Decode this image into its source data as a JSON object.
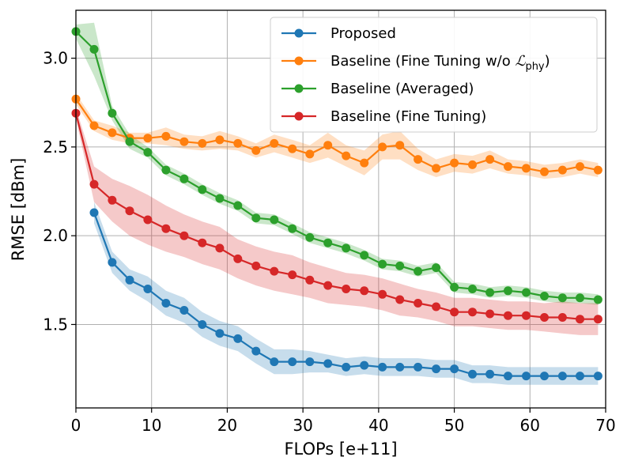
{
  "chart_data": {
    "type": "line",
    "title": "",
    "xlabel": "FLOPs [e+11]",
    "ylabel": "RMSE [dBm]",
    "xlim": [
      0,
      70
    ],
    "ylim": [
      1.03,
      3.27
    ],
    "xticks": [
      0,
      10,
      20,
      30,
      40,
      50,
      60,
      70
    ],
    "yticks": [
      1.5,
      2.0,
      2.5,
      3.0
    ],
    "xtick_labels": [
      "0",
      "10",
      "20",
      "30",
      "40",
      "50",
      "60",
      "70"
    ],
    "ytick_labels": [
      "1.5",
      "2.0",
      "2.5",
      "3.0"
    ],
    "grid": true,
    "legend_position": "top-right",
    "series": [
      {
        "name": "Proposed",
        "label_main": "Proposed",
        "label_sub": "",
        "label_suffix": "",
        "color": "#1f77b4",
        "x": [
          2.4,
          4.8,
          7.1,
          9.5,
          11.9,
          14.3,
          16.7,
          19.0,
          21.4,
          23.8,
          26.2,
          28.6,
          30.9,
          33.3,
          35.7,
          38.1,
          40.5,
          42.8,
          45.2,
          47.6,
          50.0,
          52.4,
          54.7,
          57.1,
          59.5,
          61.9,
          64.3,
          66.6,
          69.0
        ],
        "y": [
          2.13,
          1.85,
          1.75,
          1.7,
          1.62,
          1.58,
          1.5,
          1.45,
          1.42,
          1.35,
          1.29,
          1.29,
          1.29,
          1.28,
          1.26,
          1.27,
          1.26,
          1.26,
          1.26,
          1.25,
          1.25,
          1.22,
          1.22,
          1.21,
          1.21,
          1.21,
          1.21,
          1.21,
          1.21
        ],
        "band": [
          0.06,
          0.06,
          0.06,
          0.07,
          0.07,
          0.07,
          0.07,
          0.07,
          0.07,
          0.07,
          0.07,
          0.07,
          0.06,
          0.05,
          0.05,
          0.05,
          0.05,
          0.05,
          0.05,
          0.05,
          0.05,
          0.05,
          0.05,
          0.05,
          0.05,
          0.05,
          0.05,
          0.05,
          0.05
        ]
      },
      {
        "name": "Baseline (Fine Tuning w/o L_phy)",
        "label_main": "Baseline (Fine Tuning w/o ",
        "label_sub": "phy",
        "label_suffix": ")",
        "label_symbol": "ℒ",
        "color": "#ff7f0e",
        "x": [
          0,
          2.4,
          4.8,
          7.1,
          9.5,
          11.9,
          14.3,
          16.7,
          19.0,
          21.4,
          23.8,
          26.2,
          28.6,
          30.9,
          33.3,
          35.7,
          38.1,
          40.5,
          42.8,
          45.2,
          47.6,
          50.0,
          52.4,
          54.7,
          57.1,
          59.5,
          61.9,
          64.3,
          66.6,
          69.0
        ],
        "y": [
          2.77,
          2.62,
          2.58,
          2.55,
          2.55,
          2.56,
          2.53,
          2.52,
          2.54,
          2.52,
          2.48,
          2.52,
          2.49,
          2.46,
          2.51,
          2.45,
          2.41,
          2.5,
          2.51,
          2.43,
          2.38,
          2.41,
          2.4,
          2.43,
          2.39,
          2.38,
          2.36,
          2.37,
          2.39,
          2.37
        ],
        "band": [
          0.03,
          0.03,
          0.04,
          0.03,
          0.03,
          0.05,
          0.04,
          0.04,
          0.05,
          0.04,
          0.04,
          0.05,
          0.05,
          0.05,
          0.07,
          0.06,
          0.07,
          0.07,
          0.08,
          0.06,
          0.05,
          0.05,
          0.05,
          0.05,
          0.04,
          0.04,
          0.04,
          0.04,
          0.04,
          0.04
        ]
      },
      {
        "name": "Baseline (Averaged)",
        "label_main": "Baseline (Averaged)",
        "label_sub": "",
        "label_suffix": "",
        "color": "#2ca02c",
        "x": [
          0,
          2.4,
          4.8,
          7.1,
          9.5,
          11.9,
          14.3,
          16.7,
          19.0,
          21.4,
          23.8,
          26.2,
          28.6,
          30.9,
          33.3,
          35.7,
          38.1,
          40.5,
          42.8,
          45.2,
          47.6,
          50.0,
          52.4,
          54.7,
          57.1,
          59.5,
          61.9,
          64.3,
          66.6,
          69.0
        ],
        "y": [
          3.15,
          3.05,
          2.69,
          2.53,
          2.47,
          2.37,
          2.32,
          2.26,
          2.21,
          2.17,
          2.1,
          2.09,
          2.04,
          1.99,
          1.96,
          1.93,
          1.89,
          1.84,
          1.83,
          1.8,
          1.82,
          1.71,
          1.7,
          1.68,
          1.69,
          1.68,
          1.66,
          1.65,
          1.65,
          1.64
        ],
        "band": [
          0.04,
          0.15,
          0.04,
          0.04,
          0.03,
          0.03,
          0.03,
          0.03,
          0.03,
          0.03,
          0.03,
          0.03,
          0.03,
          0.03,
          0.03,
          0.03,
          0.03,
          0.03,
          0.03,
          0.03,
          0.03,
          0.03,
          0.03,
          0.03,
          0.03,
          0.03,
          0.03,
          0.03,
          0.03,
          0.03
        ]
      },
      {
        "name": "Baseline (Fine Tuning)",
        "label_main": "Baseline (Fine Tuning)",
        "label_sub": "",
        "label_suffix": "",
        "color": "#d62728",
        "x": [
          0,
          2.4,
          4.8,
          7.1,
          9.5,
          11.9,
          14.3,
          16.7,
          19.0,
          21.4,
          23.8,
          26.2,
          28.6,
          30.9,
          33.3,
          35.7,
          38.1,
          40.5,
          42.8,
          45.2,
          47.6,
          50.0,
          52.4,
          54.7,
          57.1,
          59.5,
          61.9,
          64.3,
          66.6,
          69.0
        ],
        "y": [
          2.69,
          2.29,
          2.2,
          2.14,
          2.09,
          2.04,
          2.0,
          1.96,
          1.93,
          1.87,
          1.83,
          1.8,
          1.78,
          1.75,
          1.72,
          1.7,
          1.69,
          1.67,
          1.64,
          1.62,
          1.6,
          1.57,
          1.57,
          1.56,
          1.55,
          1.55,
          1.54,
          1.54,
          1.53,
          1.53
        ],
        "band": [
          0.03,
          0.1,
          0.12,
          0.14,
          0.14,
          0.13,
          0.12,
          0.12,
          0.12,
          0.11,
          0.11,
          0.11,
          0.11,
          0.1,
          0.1,
          0.09,
          0.09,
          0.09,
          0.09,
          0.08,
          0.08,
          0.08,
          0.08,
          0.08,
          0.08,
          0.08,
          0.08,
          0.09,
          0.09,
          0.09
        ]
      }
    ]
  }
}
